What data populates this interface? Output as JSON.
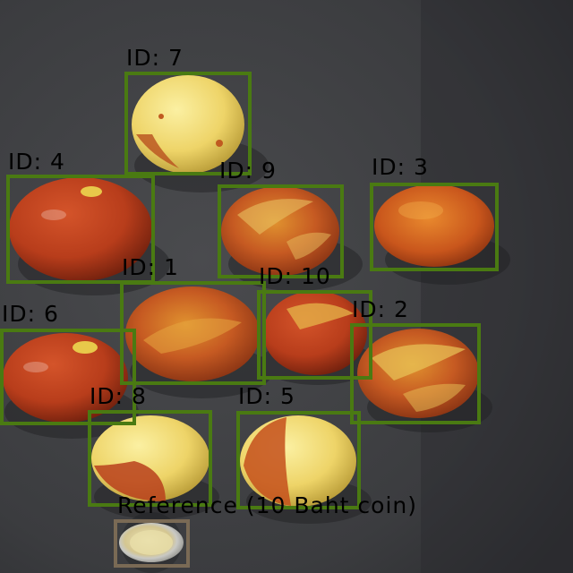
{
  "detections": [
    {
      "id_label": "ID: 7"
    },
    {
      "id_label": "ID: 4"
    },
    {
      "id_label": "ID: 9"
    },
    {
      "id_label": "ID: 3"
    },
    {
      "id_label": "ID: 1"
    },
    {
      "id_label": "ID: 10"
    },
    {
      "id_label": "ID: 6"
    },
    {
      "id_label": "ID: 2"
    },
    {
      "id_label": "ID: 8"
    },
    {
      "id_label": "ID: 5"
    }
  ],
  "reference": {
    "label": "Reference (10 Baht coin)"
  },
  "colors": {
    "box": "#4a7a12",
    "reference_box": "#7a6a55",
    "background": "#3a3b3d"
  }
}
